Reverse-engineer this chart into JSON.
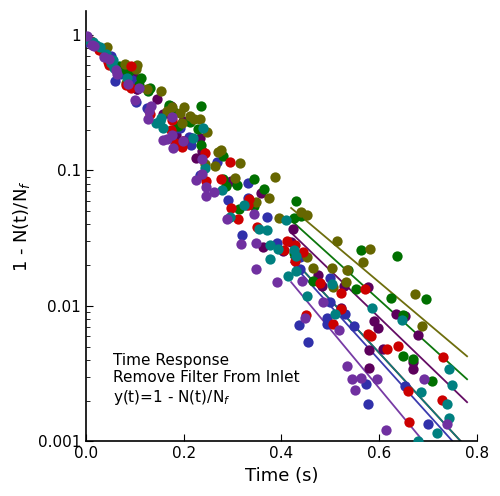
{
  "xlabel": "Time (s)",
  "ylabel": "1 - N(t)/N$_f$",
  "xlim": [
    0.0,
    0.8
  ],
  "ylim": [
    0.001,
    1.5
  ],
  "annotation_line1": "Time Response",
  "annotation_line2": "Remove Filter From Inlet",
  "annotation_line3": "y(t)=1 - N(t)/N$_f$",
  "colors": [
    "#5C005C",
    "#3030AA",
    "#007000",
    "#666600",
    "#CC0000",
    "#008080",
    "#7030A0"
  ],
  "decay_rate": 8.0,
  "fit_t_start": 0.42,
  "fit_t_end": 0.78,
  "fit_decay_rates": [
    8.0,
    9.2,
    7.5,
    7.0,
    9.0,
    9.0,
    10.0
  ],
  "markersize": 55,
  "annotation_fontsize": 11,
  "label_fontsize": 13,
  "tick_fontsize": 11,
  "background_color": "#ffffff"
}
